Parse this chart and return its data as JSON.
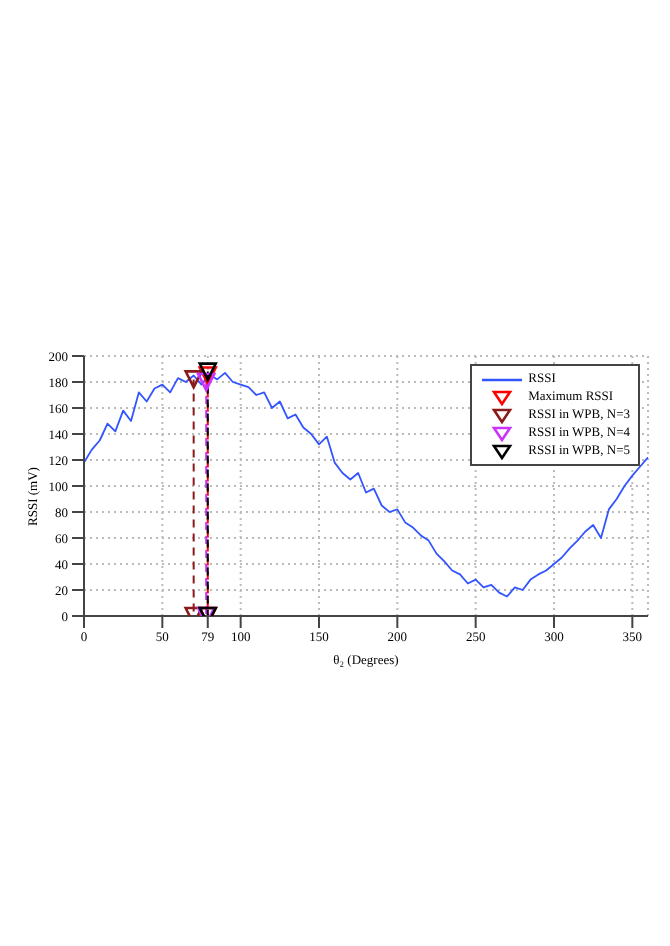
{
  "chart_data": {
    "type": "line",
    "xlabel": "θ₂ (Degrees)",
    "ylabel": "RSSI (mV)",
    "xlim": [
      0,
      360
    ],
    "xticks": [
      0,
      50,
      79,
      100,
      150,
      200,
      250,
      300,
      350
    ],
    "ylim": [
      0,
      200
    ],
    "yticks": [
      0,
      20,
      40,
      60,
      80,
      100,
      120,
      140,
      160,
      180,
      200
    ],
    "grid": true,
    "legend": "top right",
    "x": [
      0,
      5,
      10,
      15,
      20,
      25,
      30,
      35,
      40,
      45,
      50,
      55,
      60,
      65,
      70,
      75,
      80,
      85,
      90,
      95,
      100,
      105,
      110,
      115,
      120,
      125,
      130,
      135,
      140,
      145,
      150,
      155,
      160,
      165,
      170,
      175,
      180,
      185,
      190,
      195,
      200,
      205,
      210,
      215,
      220,
      225,
      230,
      235,
      240,
      245,
      250,
      255,
      260,
      265,
      270,
      275,
      280,
      285,
      290,
      295,
      300,
      305,
      310,
      315,
      320,
      325,
      330,
      335,
      340,
      345,
      350,
      355,
      360
    ],
    "series": [
      {
        "name": "RSSI",
        "color": "#3355ff",
        "marker": "none",
        "line_style": "solid",
        "values": [
          118,
          128,
          135,
          148,
          142,
          158,
          150,
          172,
          165,
          175,
          178,
          172,
          183,
          180,
          185,
          178,
          186,
          182,
          187,
          180,
          178,
          176,
          170,
          172,
          160,
          165,
          152,
          155,
          145,
          140,
          132,
          138,
          118,
          110,
          105,
          110,
          95,
          98,
          85,
          80,
          82,
          72,
          68,
          62,
          58,
          48,
          42,
          35,
          32,
          25,
          28,
          22,
          24,
          18,
          15,
          22,
          20,
          28,
          32,
          35,
          40,
          45,
          52,
          58,
          65,
          70,
          60,
          82,
          90,
          100,
          108,
          115,
          122
        ]
      },
      {
        "name": "Maximum RSSI",
        "color": "#ff0000",
        "marker": "triangle",
        "line_style": "dashed",
        "x": [
          79,
          79
        ],
        "values": [
          185,
          0
        ]
      },
      {
        "name": "RSSI in WPB, N=3",
        "color": "#8b1a1a",
        "marker": "triangle",
        "line_style": "dashed",
        "x": [
          70,
          70
        ],
        "values": [
          182,
          0
        ]
      },
      {
        "name": "RSSI in WPB, N=4",
        "color": "#cc33ff",
        "marker": "triangle",
        "line_style": "dashed",
        "x": [
          78,
          78
        ],
        "values": [
          180,
          0
        ]
      },
      {
        "name": "RSSI in WPB, N=5",
        "color": "#000000",
        "marker": "triangle",
        "line_style": "dashed",
        "x": [
          79,
          79
        ],
        "values": [
          188,
          0
        ]
      }
    ]
  }
}
